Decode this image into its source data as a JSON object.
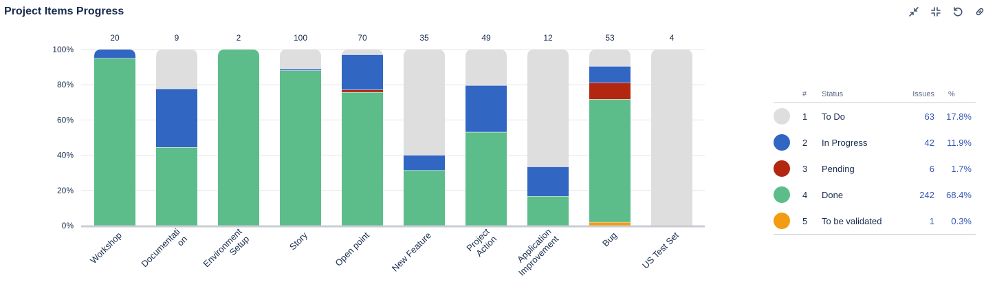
{
  "header": {
    "title": "Project Items Progress"
  },
  "toolbar": [
    {
      "name": "collapse-icon",
      "label": "collapse"
    },
    {
      "name": "minimize-icon",
      "label": "minimize"
    },
    {
      "name": "refresh-icon",
      "label": "refresh"
    },
    {
      "name": "link-icon",
      "label": "link"
    }
  ],
  "chart_data": {
    "type": "bar",
    "stacked": true,
    "normalized": true,
    "title": "",
    "xlabel": "",
    "ylabel": "",
    "ylim": [
      0,
      100
    ],
    "yticks": [
      "0%",
      "20%",
      "40%",
      "60%",
      "80%",
      "100%"
    ],
    "categories": [
      "Workshop",
      "Documentati on",
      "Environment Setup",
      "Story",
      "Open point",
      "New Feature",
      "Project Action",
      "Application Improvement",
      "Bug",
      "US Test Set"
    ],
    "category_lines": [
      [
        "Workshop"
      ],
      [
        "Documentati",
        "on"
      ],
      [
        "Environment",
        "Setup"
      ],
      [
        "Story"
      ],
      [
        "Open point"
      ],
      [
        "New Feature"
      ],
      [
        "Project",
        "Action"
      ],
      [
        "Application",
        "Improvement"
      ],
      [
        "Bug"
      ],
      [
        "US Test Set"
      ]
    ],
    "totals": [
      "20",
      "9",
      "2",
      "100",
      "70",
      "35",
      "49",
      "12",
      "53",
      "4"
    ],
    "series": [
      {
        "name": "To be validated",
        "color": "#f39c12",
        "values": [
          0,
          0,
          0,
          0,
          0,
          0,
          0,
          0,
          1.9,
          0
        ]
      },
      {
        "name": "Done",
        "color": "#5cbd8a",
        "values": [
          95,
          44.4,
          100,
          88,
          75.7,
          31.4,
          53.1,
          16.7,
          69.8,
          0
        ]
      },
      {
        "name": "Pending",
        "color": "#b3260f",
        "values": [
          0,
          0,
          0,
          0,
          1.4,
          0,
          0,
          0,
          9.4,
          0
        ]
      },
      {
        "name": "In Progress",
        "color": "#3166c2",
        "values": [
          5,
          33.3,
          0,
          1,
          20,
          8.6,
          26.5,
          16.7,
          9.4,
          0
        ]
      },
      {
        "name": "To Do",
        "color": "#dedede",
        "values": [
          0,
          22.3,
          0,
          11,
          2.9,
          60,
          20.4,
          66.6,
          9.5,
          100
        ]
      }
    ]
  },
  "legend": {
    "headers": {
      "index": "#",
      "status": "Status",
      "issues": "Issues",
      "percent": "%"
    },
    "rows": [
      {
        "index": "1",
        "status": "To Do",
        "issues": "63",
        "percent": "17.8%",
        "color": "#dedede"
      },
      {
        "index": "2",
        "status": "In Progress",
        "issues": "42",
        "percent": "11.9%",
        "color": "#3166c2"
      },
      {
        "index": "3",
        "status": "Pending",
        "issues": "6",
        "percent": "1.7%",
        "color": "#b3260f"
      },
      {
        "index": "4",
        "status": "Done",
        "issues": "242",
        "percent": "68.4%",
        "color": "#5cbd8a"
      },
      {
        "index": "5",
        "status": "To be validated",
        "issues": "1",
        "percent": "0.3%",
        "color": "#f39c12"
      }
    ]
  }
}
